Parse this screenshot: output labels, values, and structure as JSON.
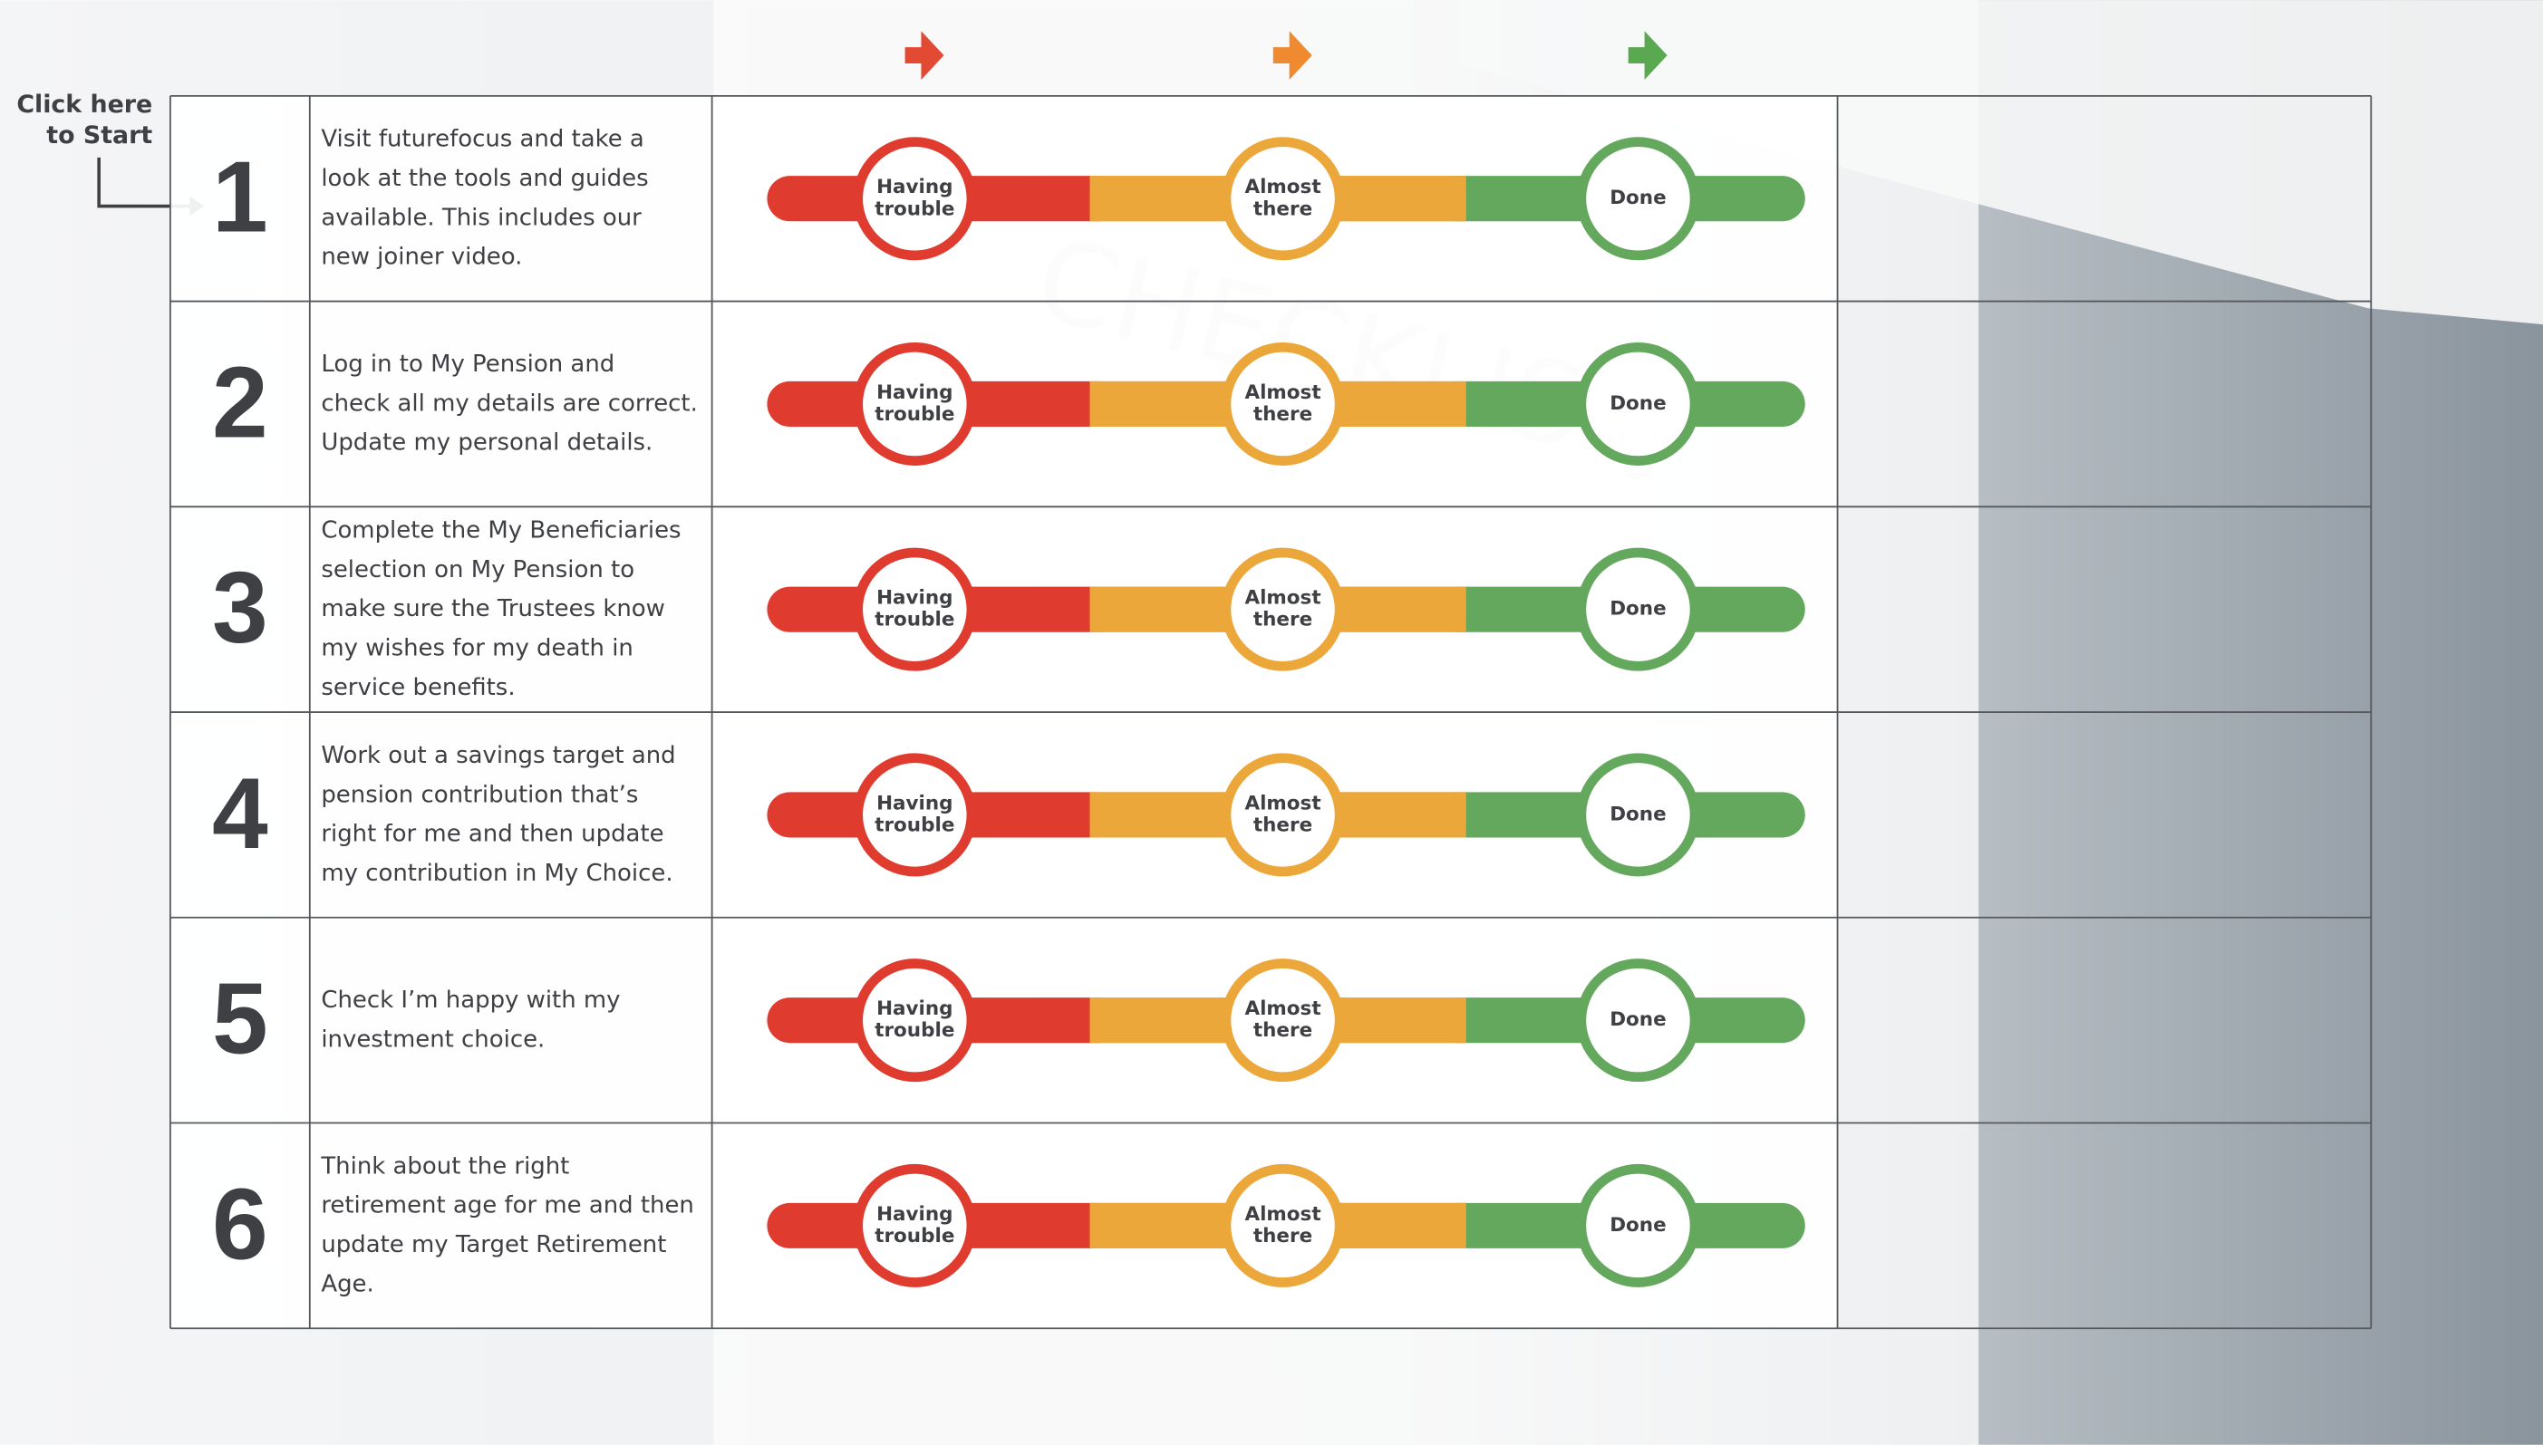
{
  "start": {
    "lines": [
      "Click here",
      "to Start"
    ]
  },
  "stages": [
    {
      "lines": [
        "Having",
        "trouble"
      ],
      "color": "#df3b2f"
    },
    {
      "lines": [
        "Almost",
        "there"
      ],
      "color": "#eca73a"
    },
    {
      "lines": [
        "Done"
      ],
      "color": "#63a85c"
    }
  ],
  "arrow_colors": [
    "#e34a33",
    "#ef8a30",
    "#5aa850"
  ],
  "rows": [
    {
      "number": "1",
      "lines": [
        "Visit futurefocus and take a",
        "look at the tools and guides",
        "available. This includes our",
        "new joiner video."
      ]
    },
    {
      "number": "2",
      "lines": [
        "Log in to My Pension and",
        "check all my details are correct.",
        "Update my personal details."
      ]
    },
    {
      "number": "3",
      "lines": [
        "Complete the My Beneficiaries",
        "selection on My Pension to",
        "make sure the Trustees know",
        "my wishes for my death in",
        "service benefits."
      ]
    },
    {
      "number": "4",
      "lines": [
        "Work out a savings target and",
        "pension contribution that’s",
        "right for me and then update",
        "my contribution in My Choice."
      ]
    },
    {
      "number": "5",
      "lines": [
        "Check I’m happy with my",
        "investment choice."
      ]
    },
    {
      "number": "6",
      "lines": [
        "Think about the right",
        "retirement age for me and then",
        "update my Target Retirement",
        "Age."
      ]
    }
  ]
}
